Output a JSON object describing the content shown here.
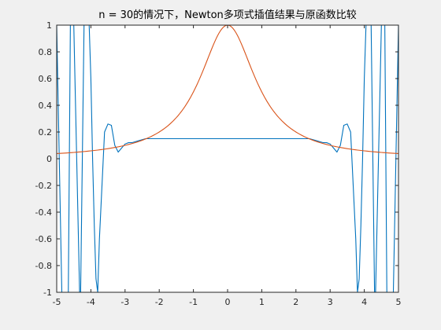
{
  "chart_data": {
    "type": "line",
    "title": "n = 30的情况下，Newton多项式插值结果与原函数比较",
    "xlabel": "",
    "ylabel": "",
    "xlim": [
      -5,
      5
    ],
    "ylim": [
      -1,
      1
    ],
    "x_ticks": [
      -5,
      -4,
      -3,
      -2,
      -1,
      0,
      1,
      2,
      3,
      4,
      5
    ],
    "y_ticks": [
      -1,
      -0.8,
      -0.6,
      -0.4,
      -0.2,
      0,
      0.2,
      0.4,
      0.6,
      0.8,
      1
    ],
    "x_tick_labels": [
      "-5",
      "-4",
      "-3",
      "-2",
      "-1",
      "0",
      "1",
      "2",
      "3",
      "4",
      "5"
    ],
    "y_tick_labels": [
      "-1",
      "-0.8",
      "-0.6",
      "-0.4",
      "-0.2",
      "0",
      "0.2",
      "0.4",
      "0.6",
      "0.8",
      "1"
    ],
    "grid": false,
    "series": [
      {
        "color": "#0072BD",
        "x": [
          -5.0,
          -4.85,
          -4.66,
          -4.6,
          -4.5,
          -4.33,
          -4.3,
          -4.2,
          -4.05,
          -4.0,
          -3.95,
          -3.9,
          -3.85,
          -3.8,
          -3.75,
          -3.6,
          -3.5,
          -3.4,
          -3.3,
          -3.2,
          -3.1,
          -3.0,
          -2.9,
          -2.8,
          -2.6,
          -2.4,
          2.4,
          2.6,
          2.8,
          2.9,
          3.0,
          3.1,
          3.2,
          3.3,
          3.4,
          3.5,
          3.6,
          3.75,
          3.8,
          3.85,
          3.9,
          3.95,
          4.0,
          4.05,
          4.2,
          4.3,
          4.33,
          4.5,
          4.6,
          4.66,
          4.85,
          5.0
        ],
        "y": [
          1.0,
          -1.0,
          -1.0,
          1.0,
          1.0,
          -1.0,
          -1.0,
          1.0,
          1.0,
          0.6,
          0.0,
          -0.5,
          -0.9,
          -1.0,
          -0.6,
          0.2,
          0.26,
          0.25,
          0.1,
          0.05,
          0.08,
          0.11,
          0.12,
          0.12,
          0.135,
          0.15,
          0.15,
          0.135,
          0.12,
          0.12,
          0.11,
          0.08,
          0.05,
          0.1,
          0.25,
          0.26,
          0.2,
          -0.6,
          -1.0,
          -0.9,
          -0.5,
          0.0,
          0.6,
          1.0,
          1.0,
          -1.0,
          -1.0,
          1.0,
          1.0,
          -1.0,
          -1.0,
          1.0
        ]
      },
      {
        "color": "#D95319",
        "function": "1/(1+x^2)",
        "x_range": [
          -5,
          5
        ],
        "samples": 201
      }
    ]
  }
}
